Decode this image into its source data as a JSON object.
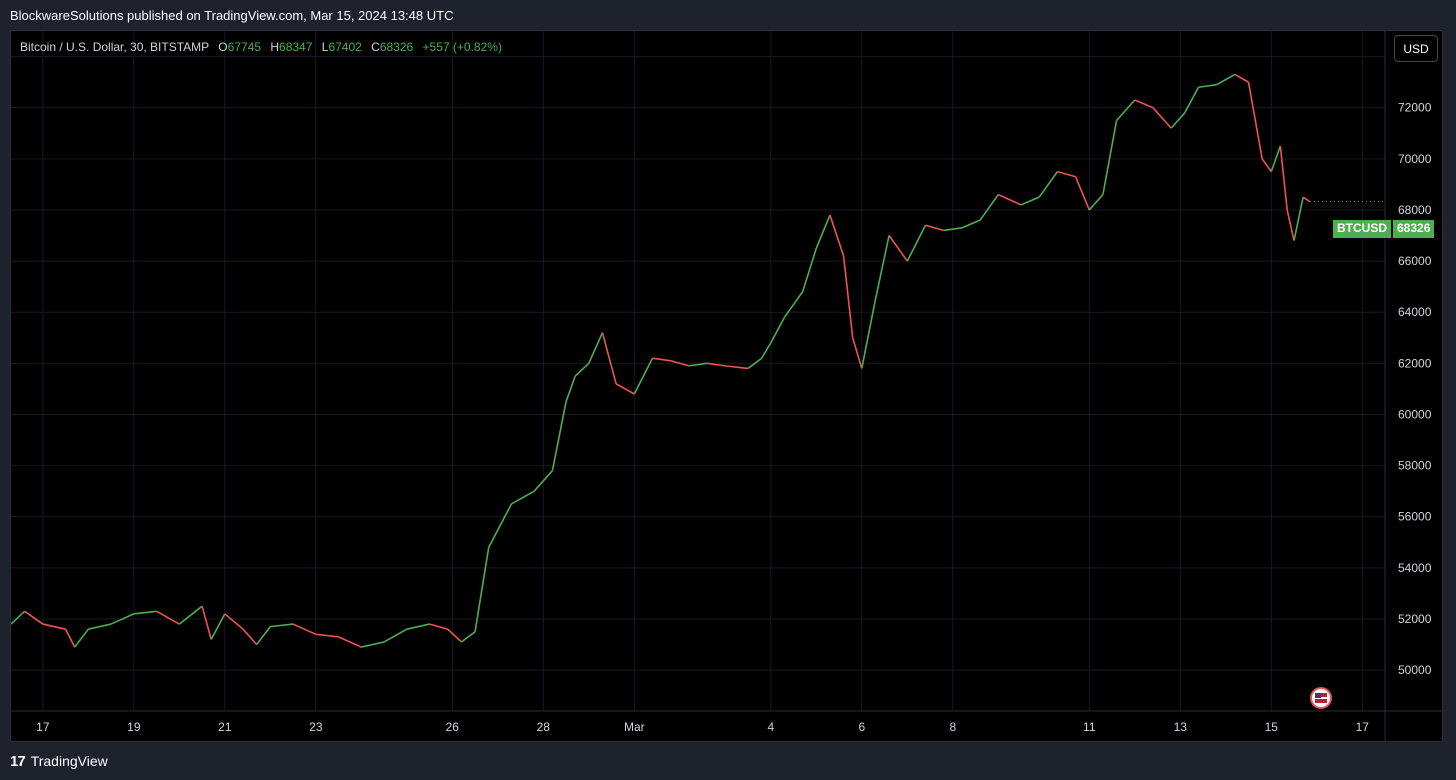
{
  "header": {
    "published_by": "BlockwareSolutions published on TradingView.com, Mar 15, 2024 13:48 UTC"
  },
  "legend": {
    "symbol_text": "Bitcoin / U.S. Dollar, 30, BITSTAMP",
    "open_label": "O",
    "open": "67745",
    "high_label": "H",
    "high": "68347",
    "low_label": "L",
    "low": "67402",
    "close_label": "C",
    "close": "68326",
    "change": "+557 (+0.82%)"
  },
  "currency_button": "USD",
  "price_tag": {
    "symbol": "BTCUSD",
    "value": "68326"
  },
  "footer": {
    "brand": "TradingView",
    "logo_mark": "17"
  },
  "icons": {
    "flag": "us-flag-icon",
    "logo": "tradingview-logo-icon"
  },
  "colors": {
    "up": "#4caf50",
    "down": "#ef5350",
    "background": "#000000",
    "grid": "#161a25"
  },
  "chart_data": {
    "type": "line",
    "title": "",
    "xlabel": "",
    "ylabel": "",
    "ylim": [
      48400,
      75000
    ],
    "y_ticks": [
      50000,
      52000,
      54000,
      56000,
      58000,
      60000,
      62000,
      64000,
      66000,
      68000,
      70000,
      72000,
      74000
    ],
    "x_ticks": [
      {
        "label": "17",
        "day": 17
      },
      {
        "label": "19",
        "day": 19
      },
      {
        "label": "21",
        "day": 21
      },
      {
        "label": "23",
        "day": 23
      },
      {
        "label": "26",
        "day": 26
      },
      {
        "label": "28",
        "day": 28
      },
      {
        "label": "Mar",
        "day": 30
      },
      {
        "label": "4",
        "day": 33
      },
      {
        "label": "6",
        "day": 35
      },
      {
        "label": "8",
        "day": 37
      },
      {
        "label": "11",
        "day": 40
      },
      {
        "label": "13",
        "day": 42
      },
      {
        "label": "15",
        "day": 44
      },
      {
        "label": "17",
        "day": 46
      }
    ],
    "xlim": [
      16.3,
      46.5
    ],
    "series": [
      {
        "points": [
          [
            16.3,
            51800
          ],
          [
            16.6,
            52300
          ],
          [
            17.0,
            51800
          ],
          [
            17.5,
            51600
          ],
          [
            17.7,
            50900
          ],
          [
            18.0,
            51600
          ],
          [
            18.5,
            51800
          ],
          [
            19.0,
            52200
          ],
          [
            19.5,
            52300
          ],
          [
            20.0,
            51800
          ],
          [
            20.5,
            52500
          ],
          [
            20.7,
            51200
          ],
          [
            21.0,
            52200
          ],
          [
            21.4,
            51600
          ],
          [
            21.7,
            51000
          ],
          [
            22.0,
            51700
          ],
          [
            22.5,
            51800
          ],
          [
            23.0,
            51400
          ],
          [
            23.5,
            51300
          ],
          [
            24.0,
            50900
          ],
          [
            24.5,
            51100
          ],
          [
            25.0,
            51600
          ],
          [
            25.5,
            51800
          ],
          [
            25.9,
            51600
          ],
          [
            26.2,
            51100
          ],
          [
            26.5,
            51500
          ],
          [
            26.8,
            54800
          ],
          [
            27.3,
            56500
          ],
          [
            27.8,
            57000
          ],
          [
            28.2,
            57800
          ],
          [
            28.5,
            60500
          ],
          [
            28.7,
            61500
          ],
          [
            29.0,
            62000
          ],
          [
            29.3,
            63200
          ],
          [
            29.6,
            61200
          ],
          [
            30.0,
            60800
          ],
          [
            30.4,
            62200
          ],
          [
            30.8,
            62100
          ],
          [
            31.2,
            61900
          ],
          [
            31.6,
            62000
          ],
          [
            32.0,
            61900
          ],
          [
            32.5,
            61800
          ],
          [
            32.8,
            62200
          ],
          [
            33.0,
            62800
          ],
          [
            33.3,
            63800
          ],
          [
            33.7,
            64800
          ],
          [
            34.0,
            66500
          ],
          [
            34.3,
            67800
          ],
          [
            34.6,
            66200
          ],
          [
            34.8,
            63000
          ],
          [
            35.0,
            61800
          ],
          [
            35.3,
            64500
          ],
          [
            35.6,
            67000
          ],
          [
            36.0,
            66000
          ],
          [
            36.4,
            67400
          ],
          [
            36.8,
            67200
          ],
          [
            37.2,
            67300
          ],
          [
            37.6,
            67600
          ],
          [
            38.0,
            68600
          ],
          [
            38.5,
            68200
          ],
          [
            38.9,
            68500
          ],
          [
            39.3,
            69500
          ],
          [
            39.7,
            69300
          ],
          [
            40.0,
            68000
          ],
          [
            40.3,
            68600
          ],
          [
            40.6,
            71500
          ],
          [
            41.0,
            72300
          ],
          [
            41.4,
            72000
          ],
          [
            41.8,
            71200
          ],
          [
            42.1,
            71800
          ],
          [
            42.4,
            72800
          ],
          [
            42.8,
            72900
          ],
          [
            43.2,
            73300
          ],
          [
            43.5,
            73000
          ],
          [
            43.8,
            70000
          ],
          [
            44.0,
            69500
          ],
          [
            44.2,
            70500
          ],
          [
            44.35,
            68000
          ],
          [
            44.5,
            66800
          ],
          [
            44.7,
            68500
          ],
          [
            44.85,
            68326
          ]
        ]
      }
    ]
  }
}
